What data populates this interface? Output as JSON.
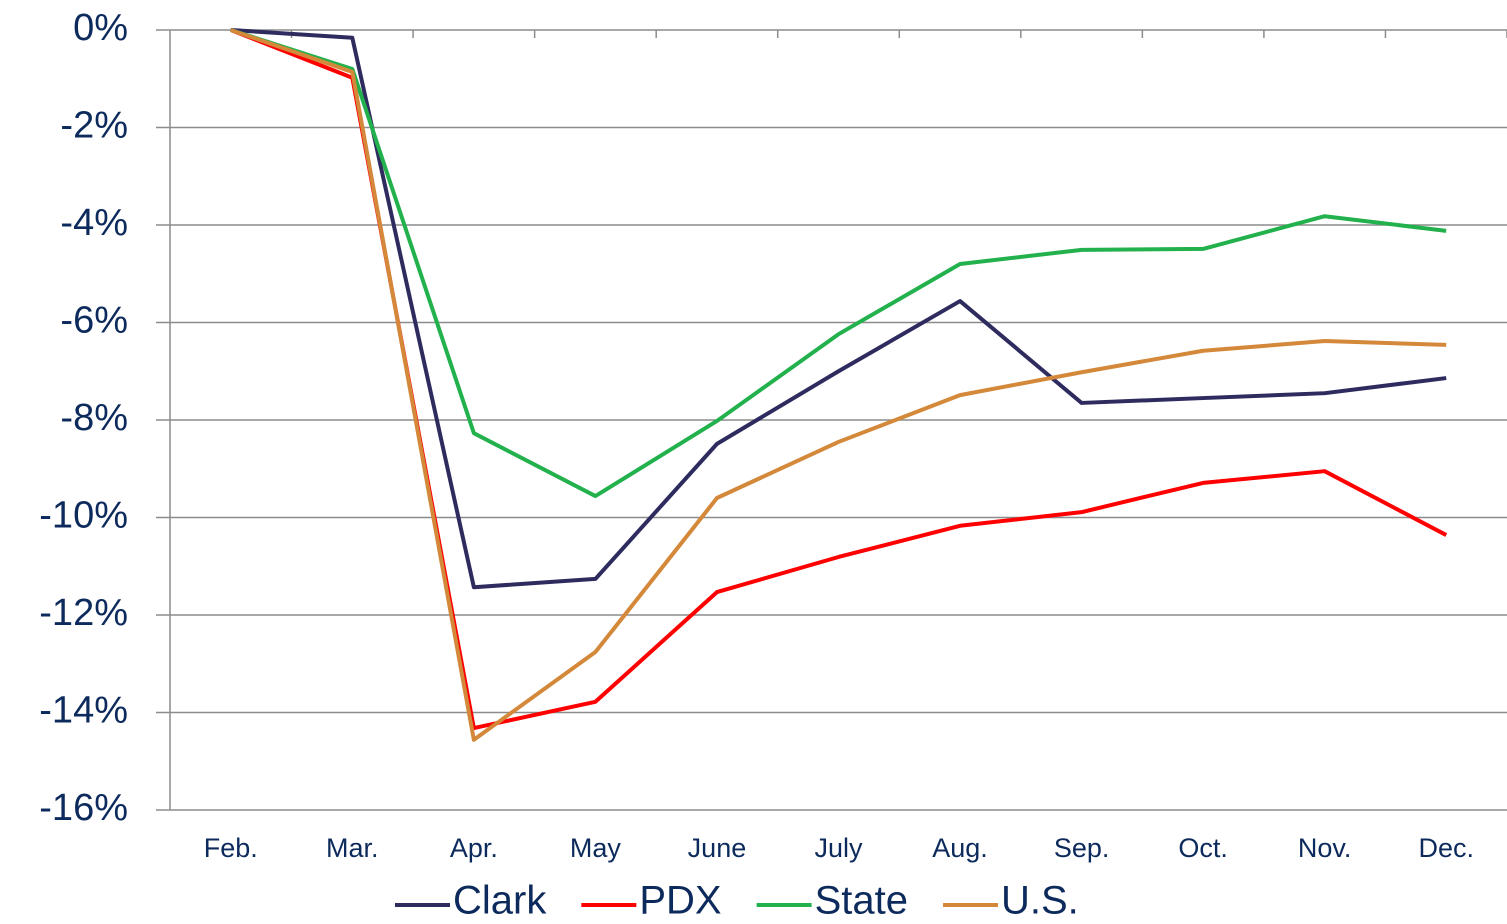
{
  "chart_data": {
    "type": "line",
    "categories": [
      "Feb.",
      "Mar.",
      "Apr.",
      "May",
      "June",
      "July",
      "Aug.",
      "Sep.",
      "Oct.",
      "Nov.",
      "Dec."
    ],
    "series": [
      {
        "name": "Clark",
        "color": "#2e2b5f",
        "values": [
          0,
          -0.16,
          -11.43,
          -11.26,
          -8.49,
          -7.0,
          -5.56,
          -7.65,
          -7.55,
          -7.45,
          -7.14
        ]
      },
      {
        "name": "PDX",
        "color": "#ff0000",
        "values": [
          0,
          -0.98,
          -14.32,
          -13.78,
          -11.53,
          -10.81,
          -10.17,
          -9.89,
          -9.29,
          -9.05,
          -10.36
        ]
      },
      {
        "name": "State",
        "color": "#22b14c",
        "values": [
          0,
          -0.8,
          -8.27,
          -9.56,
          -8.02,
          -6.24,
          -4.8,
          -4.51,
          -4.49,
          -3.82,
          -4.12
        ]
      },
      {
        "name": "U.S.",
        "color": "#d4883a",
        "values": [
          0,
          -0.86,
          -14.56,
          -12.76,
          -9.6,
          -8.45,
          -7.49,
          -7.02,
          -6.58,
          -6.38,
          -6.46
        ]
      }
    ],
    "ylim": [
      -16,
      0
    ],
    "yticks": [
      {
        "value": 0,
        "label": "0%"
      },
      {
        "value": -2,
        "label": "-2%"
      },
      {
        "value": -4,
        "label": "-4%"
      },
      {
        "value": -6,
        "label": "-6%"
      },
      {
        "value": -8,
        "label": "-8%"
      },
      {
        "value": -10,
        "label": "-10%"
      },
      {
        "value": -12,
        "label": "-12%"
      },
      {
        "value": -14,
        "label": "-14%"
      },
      {
        "value": -16,
        "label": "-16%"
      }
    ],
    "grid": true,
    "legend": "bottom"
  }
}
